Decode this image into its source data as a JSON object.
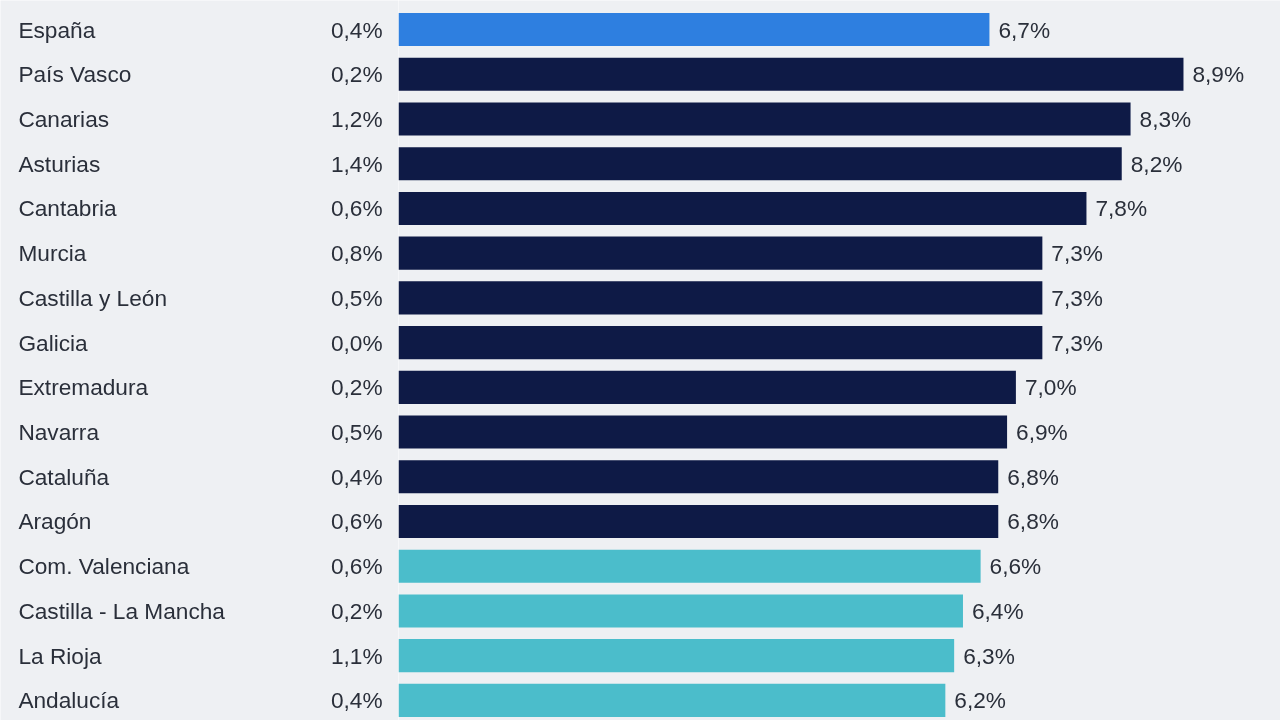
{
  "chart_data": {
    "type": "bar",
    "orientation": "horizontal",
    "categories": [
      "España",
      "País Vasco",
      "Canarias",
      "Asturias",
      "Cantabria",
      "Murcia",
      "Castilla y León",
      "Galicia",
      "Extremadura",
      "Navarra",
      "Cataluña",
      "Aragón",
      "Com. Valenciana",
      "Castilla - La Mancha",
      "La Rioja",
      "Andalucía"
    ],
    "values": [
      6.7,
      8.9,
      8.3,
      8.2,
      7.8,
      7.3,
      7.3,
      7.3,
      7.0,
      6.9,
      6.8,
      6.8,
      6.6,
      6.4,
      6.3,
      6.2
    ],
    "value_labels": [
      "6,7%",
      "8,9%",
      "8,3%",
      "8,2%",
      "7,8%",
      "7,3%",
      "7,3%",
      "7,3%",
      "7,0%",
      "6,9%",
      "6,8%",
      "6,8%",
      "6,6%",
      "6,4%",
      "6,3%",
      "6,2%"
    ],
    "colors": [
      "#2e7fe0",
      "#0e1a46",
      "#0e1a46",
      "#0e1a46",
      "#0e1a46",
      "#0e1a46",
      "#0e1a46",
      "#0e1a46",
      "#0e1a46",
      "#0e1a46",
      "#0e1a46",
      "#0e1a46",
      "#4bbdcb",
      "#4bbdcb",
      "#4bbdcb",
      "#4bbdcb"
    ],
    "xlim": [
      0,
      10
    ],
    "tick_labels": false,
    "grid": false,
    "annotations": [
      "0,4%",
      "0,2%",
      "1,2%",
      "1,4%",
      "0,6%",
      "0,8%",
      "0,5%",
      "0,0%",
      "0,2%",
      "0,5%",
      "0,4%",
      "0,6%",
      "0,6%",
      "0,2%",
      "1,1%",
      "0,4%"
    ]
  }
}
